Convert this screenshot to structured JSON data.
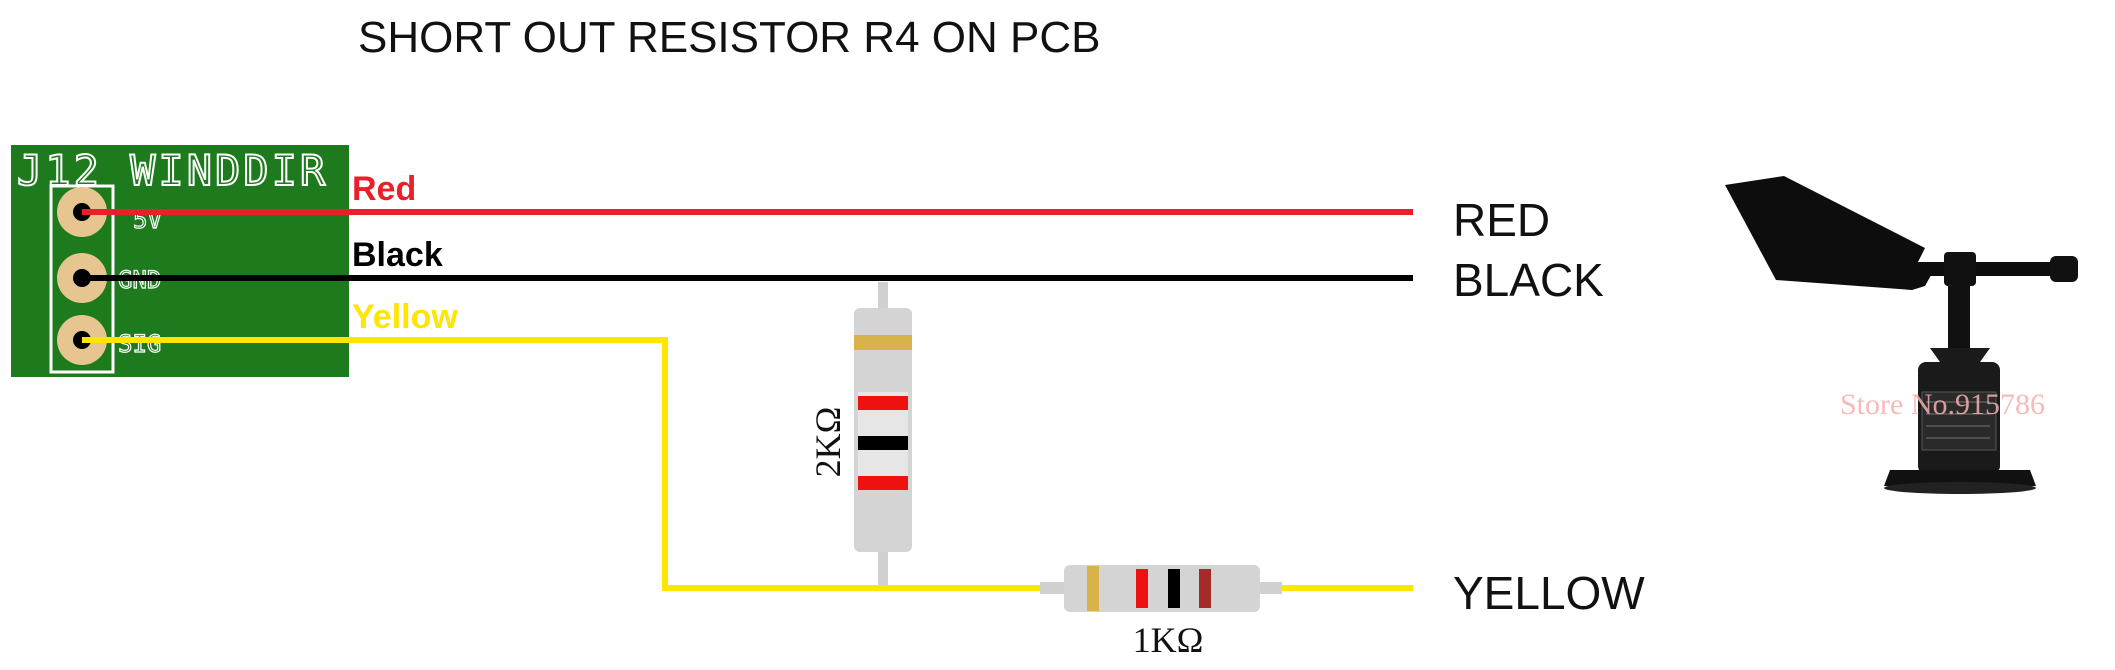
{
  "title": "SHORT OUT RESISTOR R4 ON PCB",
  "pcb": {
    "header_label": "J12 WINDDIR",
    "pins": [
      "5V",
      "GND",
      "SIG"
    ],
    "board_color": "#1d7a1d"
  },
  "wires": {
    "red_label": "Red",
    "black_label": "Black",
    "yellow_label": "Yellow",
    "red_color": "#e8202a",
    "black_color": "#000000",
    "yellow_color": "#ffe600"
  },
  "terminals": {
    "red": "RED",
    "black": "BLACK",
    "yellow": "YELLOW"
  },
  "resistors": {
    "r_vertical": "2KΩ",
    "r_horizontal": "1KΩ"
  },
  "watermark": "Store No.915786"
}
